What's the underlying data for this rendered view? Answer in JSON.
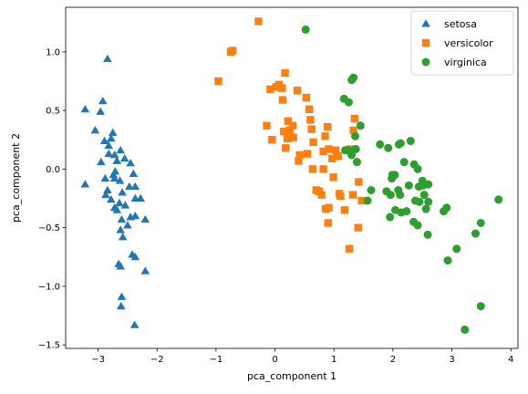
{
  "chart_data": {
    "type": "scatter",
    "xlabel": "pca_component 1",
    "ylabel": "pca_component 2",
    "xlim": [
      -3.55,
      4.12
    ],
    "ylim": [
      -1.53,
      1.38
    ],
    "xticks": [
      -3,
      -2,
      -1,
      0,
      1,
      2,
      3,
      4
    ],
    "yticks": [
      -1.5,
      -1.0,
      -0.5,
      0.0,
      0.5,
      1.0
    ],
    "ytick_labels": [
      "−1.5",
      "−1.0",
      "−0.5",
      "0.0",
      "0.5",
      "1.0"
    ],
    "xtick_labels": [
      "−3",
      "−2",
      "−1",
      "0",
      "1",
      "2",
      "3",
      "4"
    ],
    "grid": false,
    "legend_position": "top-right",
    "series": [
      {
        "name": "setosa",
        "marker": "triangle",
        "color": "#1f77b4",
        "points": [
          [
            -3.22,
            0.51
          ],
          [
            -3.22,
            -0.13
          ],
          [
            -3.05,
            0.33
          ],
          [
            -2.96,
            0.49
          ],
          [
            -2.92,
            0.58
          ],
          [
            -2.84,
            0.94
          ],
          [
            -2.89,
            0.24
          ],
          [
            -2.82,
            0.2
          ],
          [
            -2.78,
            0.26
          ],
          [
            -2.72,
            0.12
          ],
          [
            -2.95,
            0.06
          ],
          [
            -2.88,
            -0.08
          ],
          [
            -2.84,
            -0.18
          ],
          [
            -2.74,
            -0.05
          ],
          [
            -2.75,
            0.31
          ],
          [
            -2.68,
            0.07
          ],
          [
            -2.62,
            0.16
          ],
          [
            -2.55,
            0.09
          ],
          [
            -2.45,
            0.05
          ],
          [
            -2.4,
            -0.04
          ],
          [
            -2.37,
            -0.15
          ],
          [
            -2.71,
            -0.02
          ],
          [
            -2.63,
            -0.1
          ],
          [
            -2.59,
            -0.2
          ],
          [
            -2.47,
            -0.15
          ],
          [
            -2.78,
            -0.26
          ],
          [
            -2.64,
            -0.29
          ],
          [
            -2.72,
            -0.33
          ],
          [
            -2.68,
            -0.35
          ],
          [
            -2.6,
            -0.43
          ],
          [
            -2.54,
            -0.31
          ],
          [
            -2.45,
            -0.41
          ],
          [
            -2.37,
            -0.4
          ],
          [
            -2.37,
            -0.25
          ],
          [
            -2.28,
            -0.25
          ],
          [
            -2.2,
            -0.43
          ],
          [
            -2.62,
            -0.52
          ],
          [
            -2.58,
            -0.58
          ],
          [
            -2.5,
            -0.48
          ],
          [
            -2.65,
            -0.81
          ],
          [
            -2.62,
            -0.83
          ],
          [
            -2.42,
            -0.73
          ],
          [
            -2.37,
            -0.75
          ],
          [
            -2.2,
            -0.87
          ],
          [
            -2.6,
            -1.09
          ],
          [
            -2.61,
            -1.17
          ],
          [
            -2.38,
            -1.33
          ],
          [
            -2.87,
            -0.22
          ],
          [
            -2.82,
            0.13
          ],
          [
            -2.72,
            -0.08
          ]
        ]
      },
      {
        "name": "versicolor",
        "marker": "square",
        "color": "#ff7f0e",
        "points": [
          [
            -0.96,
            0.75
          ],
          [
            -0.75,
            1.0
          ],
          [
            -0.72,
            1.01
          ],
          [
            -0.28,
            1.26
          ],
          [
            -0.14,
            0.37
          ],
          [
            -0.05,
            0.25
          ],
          [
            -0.08,
            0.68
          ],
          [
            0.02,
            0.7
          ],
          [
            0.07,
            0.72
          ],
          [
            0.17,
            0.82
          ],
          [
            0.13,
            0.59
          ],
          [
            0.12,
            0.69
          ],
          [
            0.15,
            0.32
          ],
          [
            0.22,
            0.41
          ],
          [
            0.25,
            0.33
          ],
          [
            0.21,
            0.26
          ],
          [
            0.18,
            0.18
          ],
          [
            0.31,
            0.27
          ],
          [
            0.3,
            0.37
          ],
          [
            0.38,
            0.67
          ],
          [
            0.42,
            0.12
          ],
          [
            0.4,
            0.07
          ],
          [
            0.53,
            0.61
          ],
          [
            0.58,
            0.51
          ],
          [
            0.6,
            0.42
          ],
          [
            0.62,
            0.34
          ],
          [
            0.65,
            0.23
          ],
          [
            0.55,
            0.13
          ],
          [
            0.64,
            0.0
          ],
          [
            0.7,
            -0.18
          ],
          [
            0.82,
            0.15
          ],
          [
            0.82,
            0.0
          ],
          [
            0.89,
            0.36
          ],
          [
            0.85,
            0.28
          ],
          [
            0.91,
            0.17
          ],
          [
            0.97,
            0.09
          ],
          [
            0.99,
            -0.07
          ],
          [
            1.03,
            0.16
          ],
          [
            1.07,
            0.11
          ],
          [
            1.09,
            -0.21
          ],
          [
            1.11,
            -0.23
          ],
          [
            1.18,
            -0.35
          ],
          [
            0.75,
            -0.19
          ],
          [
            0.79,
            -0.22
          ],
          [
            0.86,
            -0.34
          ],
          [
            0.91,
            -0.33
          ],
          [
            0.9,
            -0.46
          ],
          [
            1.27,
            0.17
          ],
          [
            1.32,
            -0.22
          ],
          [
            1.33,
            0.33
          ],
          [
            1.35,
            0.43
          ],
          [
            1.26,
            -0.68
          ],
          [
            1.41,
            -0.5
          ],
          [
            1.47,
            -0.27
          ],
          [
            1.42,
            -0.11
          ]
        ]
      },
      {
        "name": "virginica",
        "marker": "circle",
        "color": "#2ca02c",
        "points": [
          [
            0.52,
            1.19
          ],
          [
            1.17,
            0.6
          ],
          [
            1.25,
            0.57
          ],
          [
            1.3,
            0.76
          ],
          [
            1.33,
            0.78
          ],
          [
            1.36,
            0.28
          ],
          [
            1.3,
            0.12
          ],
          [
            1.37,
            0.17
          ],
          [
            1.19,
            0.16
          ],
          [
            1.25,
            0.16
          ],
          [
            1.39,
            0.06
          ],
          [
            1.45,
            0.37
          ],
          [
            1.57,
            -0.27
          ],
          [
            1.63,
            -0.18
          ],
          [
            1.78,
            0.21
          ],
          [
            1.92,
            0.18
          ],
          [
            1.98,
            -0.08
          ],
          [
            1.99,
            -0.05
          ],
          [
            2.03,
            -0.05
          ],
          [
            1.89,
            -0.19
          ],
          [
            1.95,
            -0.41
          ],
          [
            2.1,
            0.21
          ],
          [
            2.13,
            0.22
          ],
          [
            2.19,
            0.06
          ],
          [
            2.09,
            -0.18
          ],
          [
            2.12,
            -0.22
          ],
          [
            2.23,
            -0.36
          ],
          [
            2.3,
            0.24
          ],
          [
            2.36,
            0.04
          ],
          [
            2.42,
            0.0
          ],
          [
            2.27,
            -0.14
          ],
          [
            2.38,
            -0.27
          ],
          [
            2.45,
            -0.28
          ],
          [
            2.5,
            -0.1
          ],
          [
            2.51,
            -0.14
          ],
          [
            2.53,
            -0.22
          ],
          [
            2.6,
            -0.13
          ],
          [
            2.6,
            -0.28
          ],
          [
            2.56,
            -0.34
          ],
          [
            2.35,
            -0.45
          ],
          [
            2.42,
            -0.48
          ],
          [
            2.59,
            -0.56
          ],
          [
            2.86,
            -0.36
          ],
          [
            2.91,
            -0.33
          ],
          [
            3.08,
            -0.68
          ],
          [
            2.93,
            -0.78
          ],
          [
            3.22,
            -1.37
          ],
          [
            3.4,
            -0.55
          ],
          [
            3.49,
            -0.46
          ],
          [
            3.49,
            -1.17
          ],
          [
            3.79,
            -0.26
          ],
          [
            2.04,
            -0.35
          ],
          [
            2.14,
            -0.37
          ],
          [
            1.96,
            -0.22
          ],
          [
            2.44,
            -0.15
          ]
        ]
      }
    ]
  }
}
